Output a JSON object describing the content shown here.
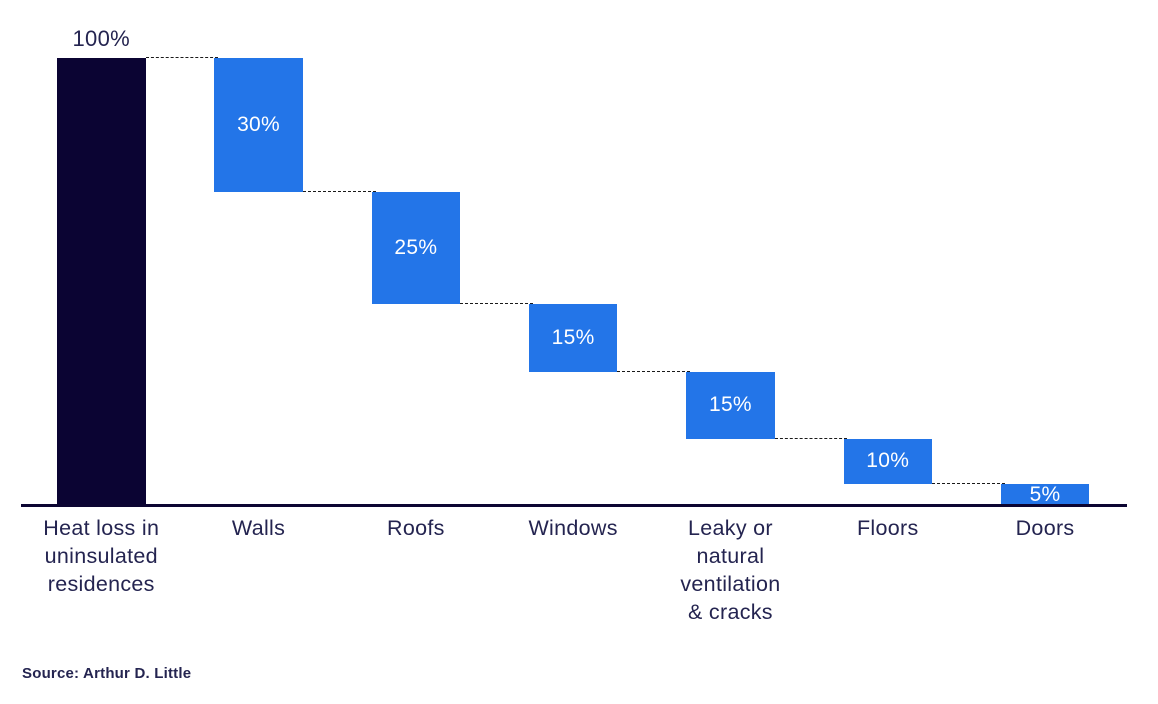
{
  "chart_data": {
    "type": "bar",
    "subtype": "waterfall",
    "title": "",
    "xlabel": "",
    "ylabel": "",
    "categories": [
      "Heat loss in\nuninsulated\nresidences",
      "Walls",
      "Roofs",
      "Windows",
      "Leaky or\nnatural\nventilation\n& cracks",
      "Floors",
      "Doors"
    ],
    "values": [
      100,
      30,
      25,
      15,
      15,
      10,
      5
    ],
    "value_labels": [
      "100%",
      "30%",
      "25%",
      "15%",
      "15%",
      "10%",
      "5%"
    ],
    "value_label_position": [
      "above",
      "inside",
      "inside",
      "inside",
      "inside",
      "inside",
      "inside"
    ],
    "cumulative_top_levels": [
      100,
      100,
      70,
      45,
      30,
      15,
      5
    ],
    "cumulative_bottom_levels": [
      0,
      70,
      45,
      30,
      15,
      5,
      0
    ],
    "ylim": [
      0,
      100
    ],
    "grid": false,
    "legend": false,
    "connector_style": "dashed",
    "colors": {
      "total_bar": "#0B0433",
      "component_bar": "#2375E8",
      "value_label_inside": "#FFFFFF",
      "value_label_outside": "#242450",
      "category_label": "#242450",
      "axis_line": "#0C0532",
      "connector": "#1A1A1A",
      "background": "#FFFFFF"
    }
  },
  "source": {
    "label": "Source: Arthur D. Little"
  }
}
